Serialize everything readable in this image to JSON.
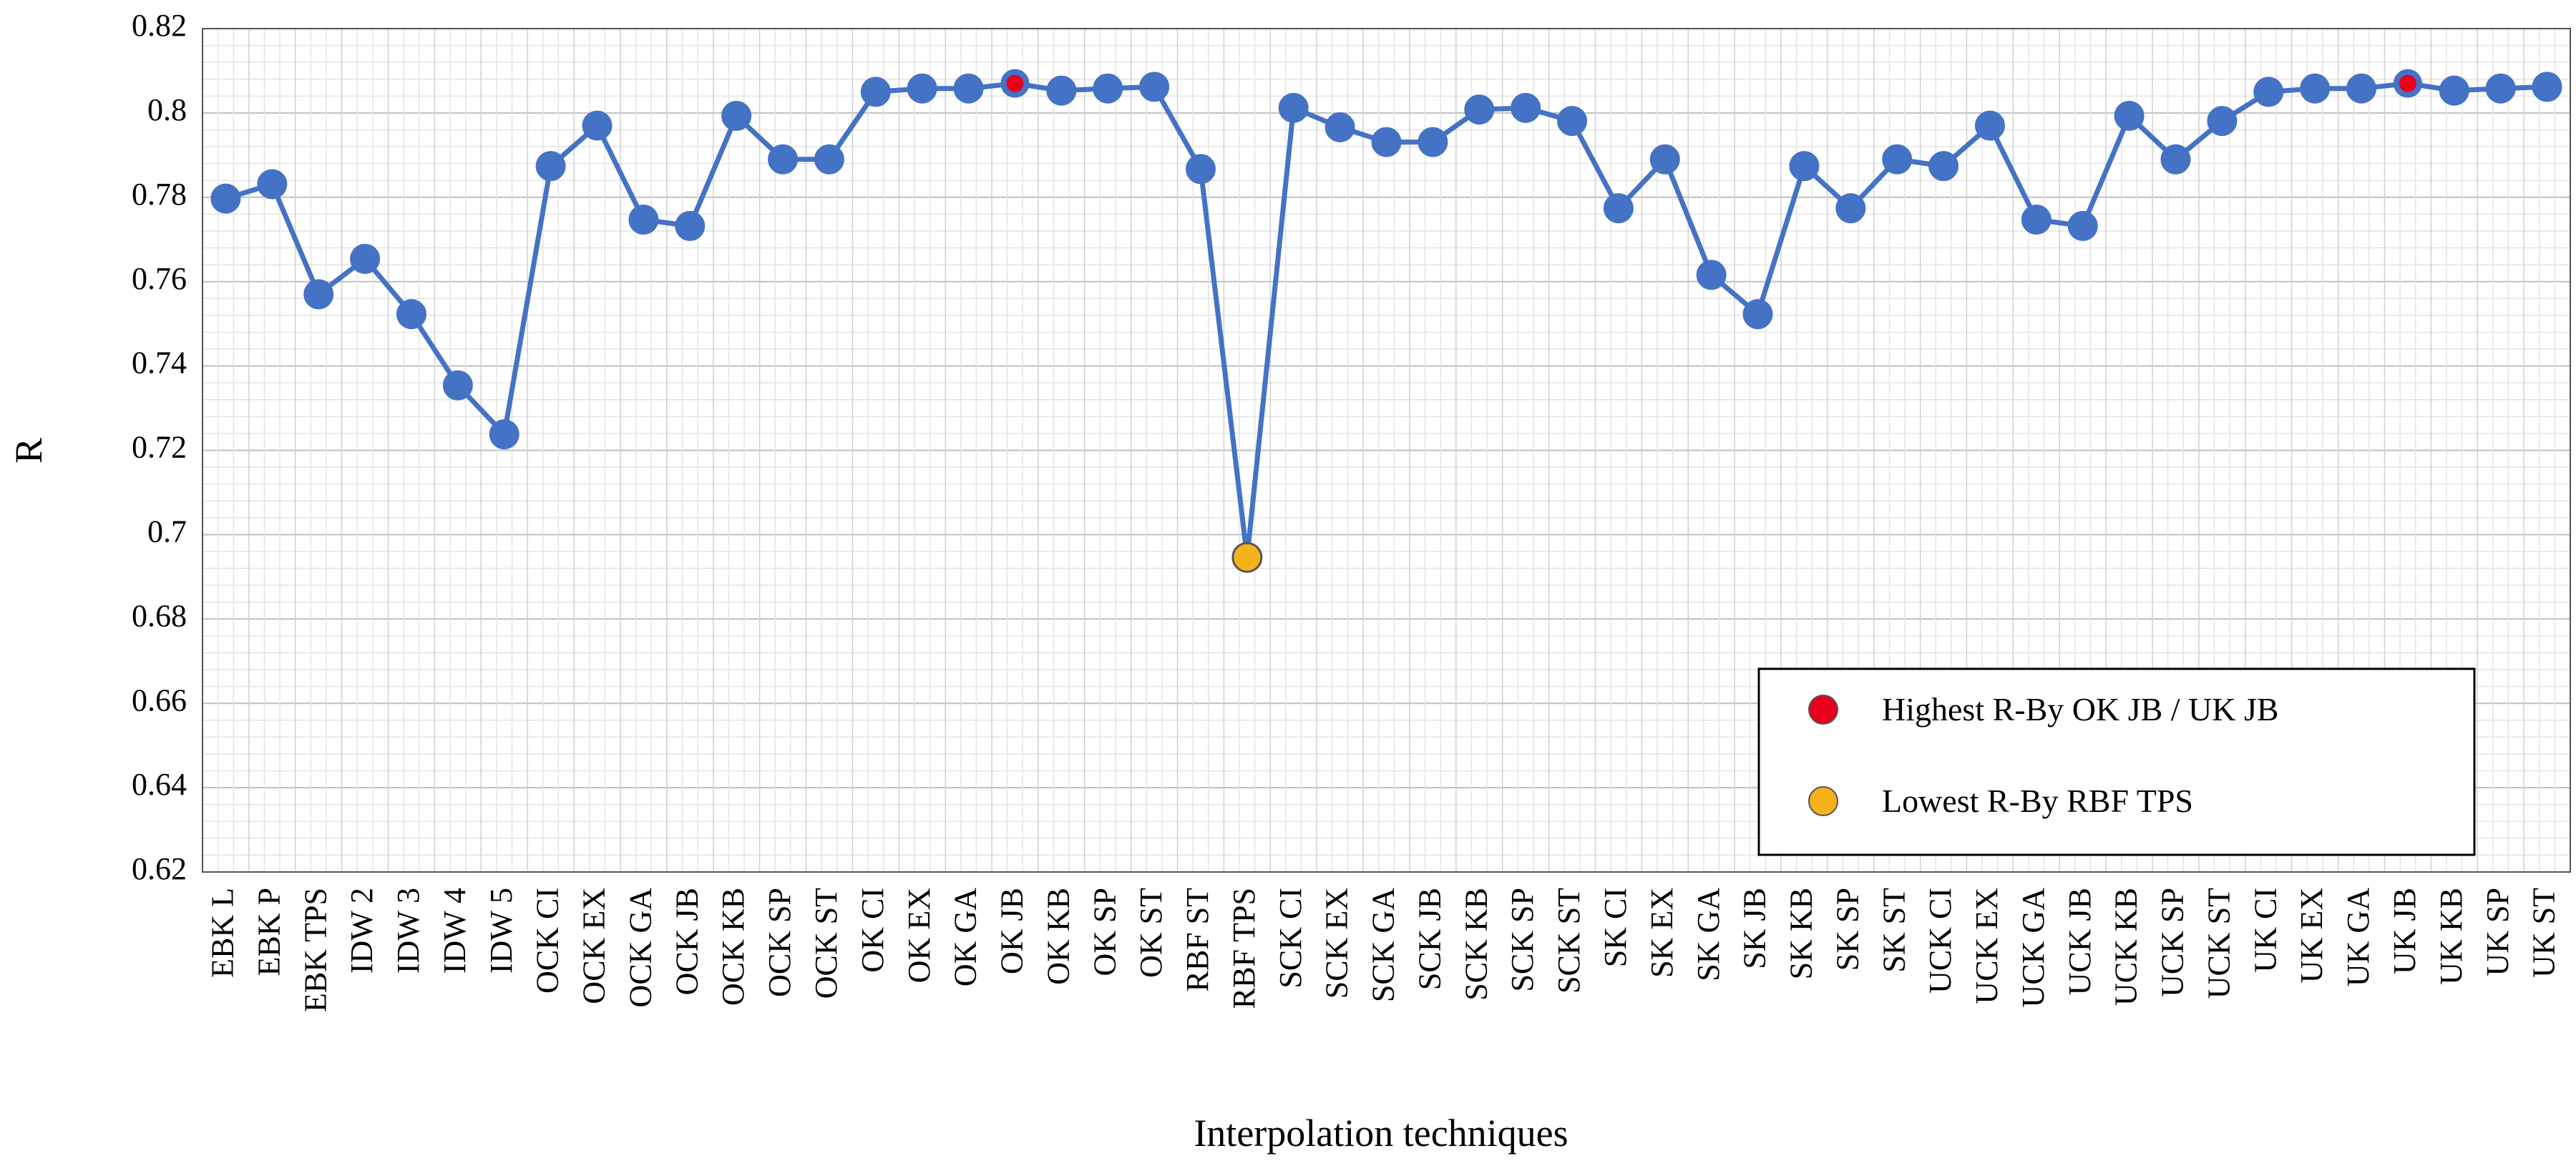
{
  "chart_data": {
    "type": "line",
    "title": "",
    "xlabel": "Interpolation techniques",
    "ylabel": "R",
    "ylim": [
      0.62,
      0.82
    ],
    "yticks": [
      "0.62",
      "0.64",
      "0.66",
      "0.68",
      "0.7",
      "0.72",
      "0.74",
      "0.76",
      "0.78",
      "0.8",
      "0.82"
    ],
    "grid": true,
    "line_color": "#4472c4",
    "highlight_high_color": "#e8001c",
    "highlight_low_color": "#f5b21b",
    "categories": [
      "EBK L",
      "EBK P",
      "EBK TPS",
      "IDW 2",
      "IDW 3",
      "IDW 4",
      "IDW 5",
      "OCK CI",
      "OCK EX",
      "OCK GA",
      "OCK JB",
      "OCK KB",
      "OCK SP",
      "OCK ST",
      "OK CI",
      "OK EX",
      "OK GA",
      "OK JB",
      "OK KB",
      "OK SP",
      "OK ST",
      "RBF ST",
      "RBF TPS",
      "SCK CI",
      "SCK EX",
      "SCK GA",
      "SCK JB",
      "SCK KB",
      "SCK SP",
      "SCK ST",
      "SK CI",
      "SK EX",
      "SK GA",
      "SK JB",
      "SK KB",
      "SK SP",
      "SK ST",
      "UCK CI",
      "UCK EX",
      "UCK GA",
      "UCK JB",
      "UCK KB",
      "UCK SP",
      "UCK ST",
      "UK CI",
      "UK EX",
      "UK GA",
      "UK JB",
      "UK KB",
      "UK SP",
      "UK ST"
    ],
    "series": [
      {
        "values": [
          0.7797,
          0.7831,
          0.757,
          0.7654,
          0.7523,
          0.7354,
          0.7238,
          0.7874,
          0.797,
          0.7747,
          0.7732,
          0.7993,
          0.789,
          0.789,
          0.805,
          0.8058,
          0.8058,
          0.807,
          0.8053,
          0.8058,
          0.8062,
          0.7867,
          0.6946,
          0.8012,
          0.7966,
          0.7931,
          0.7931,
          0.8008,
          0.8012,
          0.7981,
          0.7774,
          0.789,
          0.7616,
          0.7523,
          0.7874,
          0.7774,
          0.789,
          0.7874,
          0.797,
          0.7747,
          0.7732,
          0.7993,
          0.789,
          0.7981,
          0.805,
          0.8058,
          0.8058,
          0.807,
          0.8053,
          0.8058,
          0.8062
        ]
      }
    ],
    "highlights": {
      "highest": [
        "OK JB",
        "UK JB"
      ],
      "lowest": [
        "RBF TPS"
      ]
    },
    "legend": {
      "position": "bottom-right",
      "entries": [
        {
          "label": "Highest R-By OK JB / UK JB",
          "color": "#e8001c"
        },
        {
          "label": "Lowest R-By RBF TPS",
          "color": "#f5b21b"
        }
      ]
    }
  }
}
